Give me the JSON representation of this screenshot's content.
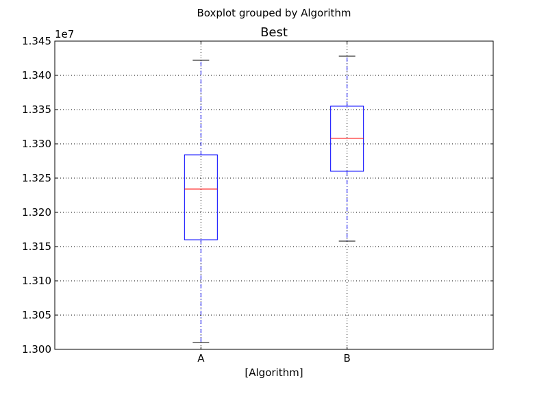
{
  "chart_data": {
    "type": "boxplot",
    "suptitle": "Boxplot grouped by Algorithm",
    "title": "Best",
    "xlabel": "[Algorithm]",
    "ylabel": "",
    "y_offset_label": "1e7",
    "y_scale_factor": 10000000,
    "ylim": [
      1.3,
      1.345
    ],
    "y_ticks": [
      "1.300",
      "1.305",
      "1.310",
      "1.315",
      "1.320",
      "1.325",
      "1.330",
      "1.335",
      "1.340",
      "1.345"
    ],
    "grid": true,
    "categories": [
      "A",
      "B"
    ],
    "boxes": [
      {
        "category": "A",
        "whisker_low": 1.301,
        "q1": 1.316,
        "median": 1.3234,
        "q3": 1.3284,
        "whisker_high": 1.3422
      },
      {
        "category": "B",
        "whisker_low": 1.3158,
        "q1": 1.326,
        "median": 1.3308,
        "q3": 1.3355,
        "whisker_high": 1.3428
      }
    ],
    "colors": {
      "box": "#0000ff",
      "median": "#ff0000",
      "whisker": "#0000ff",
      "cap": "#000000",
      "grid": "#000000",
      "frame": "#000000"
    }
  }
}
